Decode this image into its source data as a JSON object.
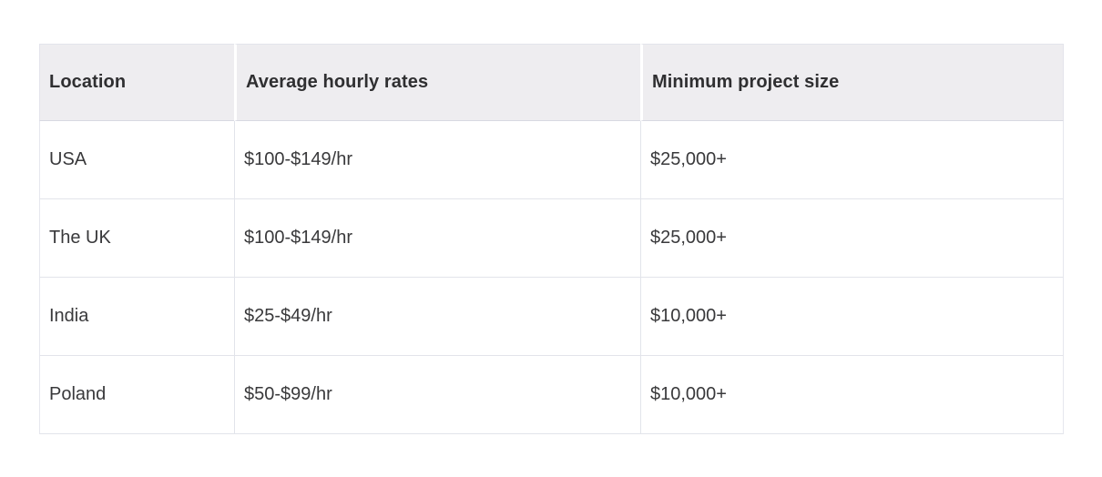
{
  "chart_data": {
    "type": "table",
    "title": "",
    "columns": [
      "Location",
      "Average hourly rates",
      "Minimum project size"
    ],
    "rows": [
      [
        "USA",
        "$100-$149/hr",
        "$25,000+"
      ],
      [
        "The UK",
        "$100-$149/hr",
        "$25,000+"
      ],
      [
        "India",
        "$25-$49/hr",
        "$10,000+"
      ],
      [
        "Poland",
        "$50-$99/hr",
        "$10,000+"
      ]
    ]
  },
  "table": {
    "headers": {
      "location": "Location",
      "rates": "Average hourly rates",
      "min_project": "Minimum project size"
    },
    "rows": [
      {
        "location": "USA",
        "rates": "$100-$149/hr",
        "min_project": "$25,000+"
      },
      {
        "location": "The UK",
        "rates": "$100-$149/hr",
        "min_project": "$25,000+"
      },
      {
        "location": "India",
        "rates": "$25-$49/hr",
        "min_project": "$10,000+"
      },
      {
        "location": "Poland",
        "rates": "$50-$99/hr",
        "min_project": "$10,000+"
      }
    ],
    "colors": {
      "page_bg": "#ffffff",
      "header_bg": "#eeedf0",
      "header_text": "#2f2f31",
      "cell_text": "#39393b",
      "border_outer": "#e3e4eb",
      "border_row": "#e2e4ea",
      "header_bottom_border": "#d8d9e2"
    }
  }
}
